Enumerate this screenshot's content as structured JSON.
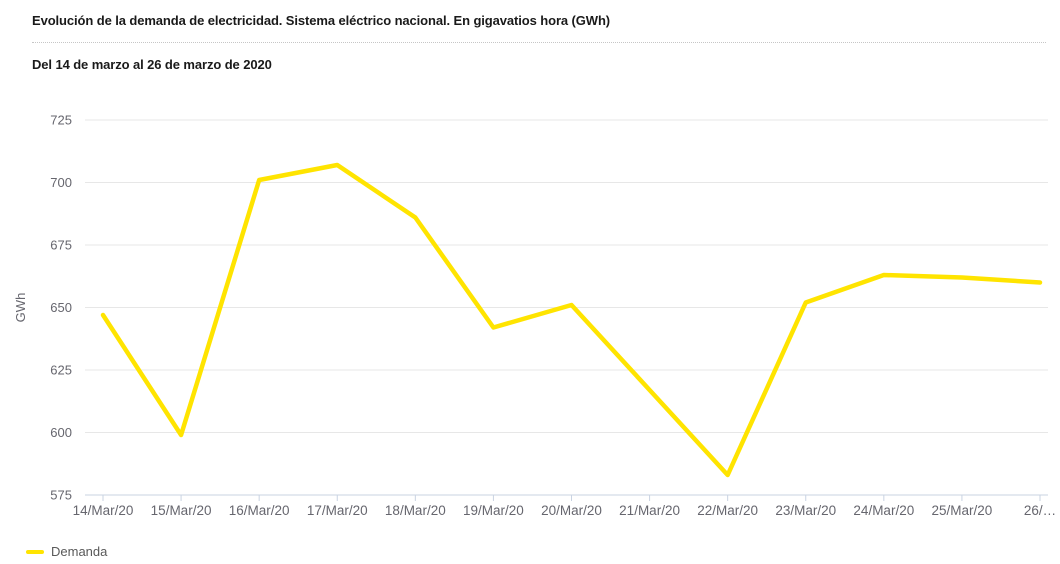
{
  "header": {
    "title": "Evolución de la demanda de electricidad. Sistema eléctrico nacional. En gigavatios hora (GWh)",
    "subtitle": "Del 14 de marzo al 26 de marzo de 2020"
  },
  "chart_data": {
    "type": "line",
    "title": "Evolución de la demanda de electricidad. Sistema eléctrico nacional. En gigavatios hora (GWh)",
    "subtitle": "Del 14 de marzo al 26 de marzo de 2020",
    "xlabel": "",
    "ylabel": "GWh",
    "categories": [
      "14/Mar/20",
      "15/Mar/20",
      "16/Mar/20",
      "17/Mar/20",
      "18/Mar/20",
      "19/Mar/20",
      "20/Mar/20",
      "21/Mar/20",
      "22/Mar/20",
      "23/Mar/20",
      "24/Mar/20",
      "25/Mar/20",
      "26/…"
    ],
    "series": [
      {
        "name": "Demanda",
        "color": "#ffe400",
        "values": [
          647,
          599,
          701,
          707,
          686,
          642,
          651,
          617,
          583,
          652,
          663,
          662,
          660
        ]
      }
    ],
    "ylim": [
      575,
      725
    ],
    "yticks": [
      575,
      600,
      625,
      650,
      675,
      700,
      725
    ],
    "grid": "horizontal",
    "legend_position": "bottom-left"
  },
  "legend": {
    "items": [
      {
        "label": "Demanda",
        "color": "#ffe400"
      }
    ]
  },
  "colors": {
    "line": "#ffe400",
    "axis": "#c9d3e2",
    "grid": "#e7e7e7",
    "tick_text": "#66666e",
    "title_text": "#1a1a1a",
    "legend_text": "#595959"
  }
}
